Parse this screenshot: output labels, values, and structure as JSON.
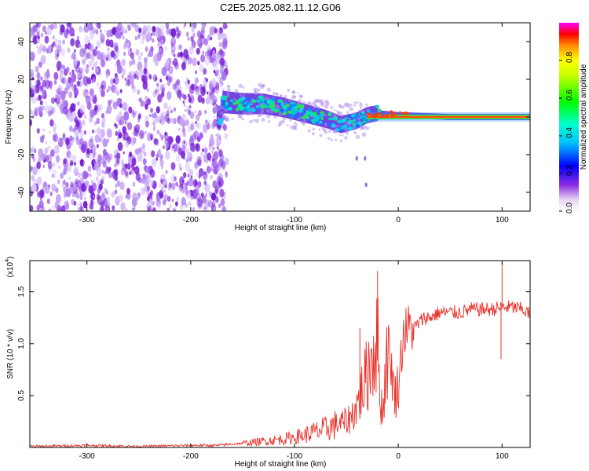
{
  "title": "C2E5.2025.082.11.12.G06",
  "chart_data": [
    {
      "type": "heatmap",
      "xlabel": "Height of straight line (km)",
      "ylabel": "Frequency (Hz)",
      "xlim": [
        -355,
        127
      ],
      "ylim": [
        -50,
        50
      ],
      "xticks": [
        -300,
        -200,
        -100,
        0,
        100
      ],
      "yticks": [
        -40,
        -20,
        0,
        20,
        40
      ],
      "xtick_labels": [
        "-300",
        "-200",
        "-100",
        "0",
        "100"
      ],
      "ytick_labels": [
        "-40",
        "-20",
        "0",
        "20",
        "40"
      ],
      "colorbar": {
        "label": "Normalized spectral amplitude",
        "range": [
          0,
          1
        ],
        "ticks": [
          0.0,
          0.2,
          0.4,
          0.6,
          0.8
        ],
        "tick_labels": [
          "0.0",
          "0.2",
          "0.4",
          "0.6",
          "0.8"
        ],
        "colormap": "rainbow"
      },
      "center_frequency_track": [
        {
          "x": -170,
          "y": 8
        },
        {
          "x": -150,
          "y": 7
        },
        {
          "x": -130,
          "y": 7
        },
        {
          "x": -110,
          "y": 5
        },
        {
          "x": -90,
          "y": 2
        },
        {
          "x": -70,
          "y": -1
        },
        {
          "x": -55,
          "y": -4
        },
        {
          "x": -40,
          "y": -2
        },
        {
          "x": -30,
          "y": 1
        },
        {
          "x": -20,
          "y": 2
        },
        {
          "x": 0,
          "y": 1
        },
        {
          "x": 50,
          "y": 0
        },
        {
          "x": 127,
          "y": 0
        }
      ],
      "noise_region_x": [
        -355,
        -175
      ]
    },
    {
      "type": "line",
      "xlabel": "Height of straight line (km)",
      "ylabel": "SNR (10 * v/v)",
      "y_multiplier_label": "(x10",
      "y_multiplier_exp": "4",
      "xlim": [
        -355,
        127
      ],
      "ylim": [
        0,
        1.8
      ],
      "xticks": [
        -300,
        -200,
        -100,
        0,
        100
      ],
      "yticks": [
        0.5,
        1.0,
        1.5
      ],
      "xtick_labels": [
        "-300",
        "-200",
        "-100",
        "0",
        "100"
      ],
      "ytick_labels": [
        "0.5",
        "1.0",
        "1.5"
      ],
      "series_color": "#e8312a",
      "series": [
        {
          "x": [
            -355,
            -300,
            -250,
            -200,
            -175,
            -150,
            -130,
            -110,
            -100,
            -90,
            -80,
            -70,
            -60,
            -50,
            -45,
            -40,
            -35,
            -30,
            -28,
            -25,
            -22,
            -20,
            -18,
            -15,
            -12,
            -10,
            -8,
            -5,
            -3,
            0,
            3,
            5,
            10,
            15,
            20,
            25,
            30,
            40,
            50,
            60,
            70,
            80,
            90,
            100,
            110,
            120,
            127
          ],
          "y": [
            0.01,
            0.02,
            0.01,
            0.02,
            0.02,
            0.04,
            0.06,
            0.08,
            0.1,
            0.12,
            0.15,
            0.18,
            0.22,
            0.25,
            0.3,
            0.4,
            0.55,
            0.7,
            0.8,
            0.9,
            1.0,
            1.05,
            0.6,
            0.3,
            0.8,
            1.0,
            0.9,
            0.6,
            0.5,
            0.6,
            0.9,
            1.1,
            1.15,
            1.15,
            1.2,
            1.25,
            1.25,
            1.3,
            1.3,
            1.3,
            1.33,
            1.33,
            1.33,
            1.35,
            1.35,
            1.33,
            1.28
          ],
          "peaks": [
            {
              "x": -20,
              "y": 1.7
            },
            {
              "x": -37,
              "y": 1.15
            },
            {
              "x": 100,
              "y": 1.78
            },
            {
              "x": 99,
              "y": 0.85
            }
          ]
        }
      ]
    }
  ]
}
